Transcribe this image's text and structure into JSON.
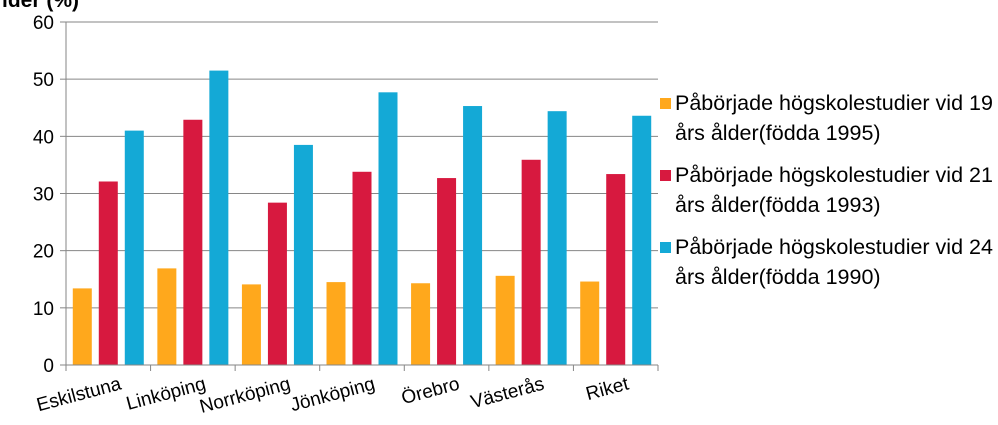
{
  "chart_data": {
    "type": "bar",
    "title": "lder (%)",
    "categories": [
      "Eskilstuna",
      "Linköping",
      "Norrköping",
      "Jönköping",
      "Örebro",
      "Västerås",
      "Riket"
    ],
    "series": [
      {
        "name": "Påbörjade högskolestudier vid 19 års ålder(födda 1995)",
        "color": "#FFA81C",
        "values": [
          13.4,
          16.9,
          14.1,
          14.5,
          14.3,
          15.6,
          14.6
        ]
      },
      {
        "name": "Påbörjade högskolestudier vid 21 års ålder(födda 1993)",
        "color": "#D7193F",
        "values": [
          32.1,
          42.9,
          28.4,
          33.8,
          32.7,
          35.9,
          33.4
        ]
      },
      {
        "name": "Påbörjade högskolestudier vid 24 års ålder(födda 1990)",
        "color": "#14A9D6",
        "values": [
          41.0,
          51.5,
          38.5,
          47.7,
          45.3,
          44.4,
          43.6
        ]
      }
    ],
    "ylim": [
      0,
      60
    ],
    "yticks": [
      "0",
      "10",
      "20",
      "30",
      "40",
      "50",
      "60"
    ],
    "grid": true,
    "legend_position": "right"
  }
}
